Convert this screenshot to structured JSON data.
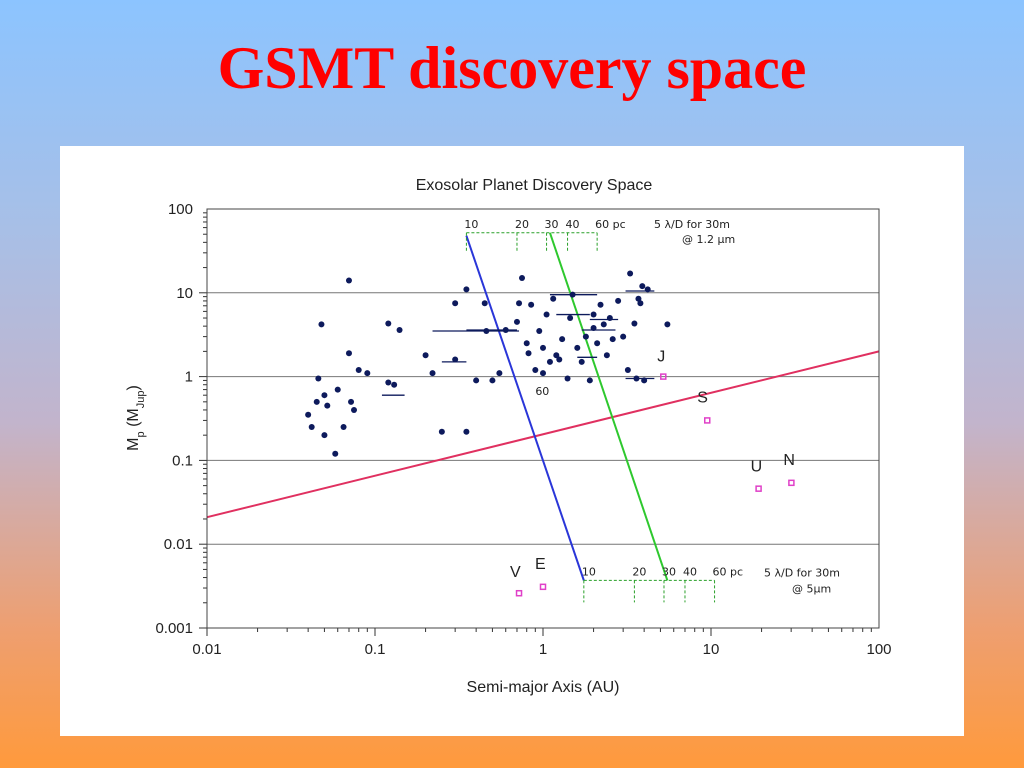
{
  "slide": {
    "title": "GSMT discovery space"
  },
  "colors": {
    "title": "#ff0000",
    "points": "#0d1a5c",
    "solar": "#e040c8",
    "blue_line": "#2a36d8",
    "green_line": "#2ec82e",
    "red_line": "#e03060",
    "dashed": "#2aa02a"
  },
  "chart_data": {
    "type": "scatter",
    "title": "Exosolar Planet Discovery Space",
    "xlabel": "Semi-major Axis (AU)",
    "ylabel": "Mp (MJup)",
    "ylabel_main": "M",
    "ylabel_sub": "p",
    "ylabel_unit_open": " (M",
    "ylabel_unit_sub": "Jup",
    "ylabel_unit_close": ")",
    "x_scale": "log",
    "y_scale": "log",
    "xlim": [
      0.01,
      100
    ],
    "ylim": [
      0.001,
      100
    ],
    "x_ticks": [
      {
        "value": 0.01,
        "label": "0.01"
      },
      {
        "value": 0.1,
        "label": "0.1"
      },
      {
        "value": 1,
        "label": "1"
      },
      {
        "value": 10,
        "label": "10"
      },
      {
        "value": 100,
        "label": "100"
      }
    ],
    "y_ticks": [
      {
        "value": 100,
        "label": "100"
      },
      {
        "value": 10,
        "label": "10"
      },
      {
        "value": 1,
        "label": "1"
      },
      {
        "value": 0.1,
        "label": "0.1"
      },
      {
        "value": 0.01,
        "label": "0.01"
      },
      {
        "value": 0.001,
        "label": "0.001"
      }
    ],
    "grid": "horizontal",
    "exoplanets": [
      [
        0.04,
        0.35
      ],
      [
        0.042,
        0.25
      ],
      [
        0.045,
        0.5
      ],
      [
        0.046,
        0.95
      ],
      [
        0.048,
        4.2
      ],
      [
        0.05,
        0.6
      ],
      [
        0.05,
        0.2
      ],
      [
        0.052,
        0.45
      ],
      [
        0.058,
        0.12
      ],
      [
        0.06,
        0.7
      ],
      [
        0.065,
        0.25
      ],
      [
        0.07,
        1.9
      ],
      [
        0.07,
        14
      ],
      [
        0.072,
        0.5
      ],
      [
        0.075,
        0.4
      ],
      [
        0.08,
        1.2
      ],
      [
        0.09,
        1.1
      ],
      [
        0.12,
        4.3
      ],
      [
        0.12,
        0.85
      ],
      [
        0.13,
        0.8
      ],
      [
        0.14,
        3.6
      ],
      [
        0.2,
        1.8
      ],
      [
        0.22,
        1.1
      ],
      [
        0.25,
        0.22
      ],
      [
        0.3,
        1.6
      ],
      [
        0.3,
        7.5
      ],
      [
        0.35,
        0.22
      ],
      [
        0.35,
        11
      ],
      [
        0.4,
        0.9
      ],
      [
        0.45,
        7.5
      ],
      [
        0.46,
        3.5
      ],
      [
        0.5,
        0.9
      ],
      [
        0.55,
        1.1
      ],
      [
        0.6,
        3.6
      ],
      [
        0.7,
        4.5
      ],
      [
        0.72,
        7.5
      ],
      [
        0.75,
        15
      ],
      [
        0.8,
        2.5
      ],
      [
        0.82,
        1.9
      ],
      [
        0.85,
        7.2
      ],
      [
        0.9,
        1.2
      ],
      [
        0.95,
        3.5
      ],
      [
        1.0,
        2.2
      ],
      [
        1.0,
        1.1
      ],
      [
        1.05,
        5.5
      ],
      [
        1.1,
        1.5
      ],
      [
        1.15,
        8.5
      ],
      [
        1.2,
        1.8
      ],
      [
        1.25,
        1.6
      ],
      [
        1.3,
        2.8
      ],
      [
        1.4,
        0.95
      ],
      [
        1.45,
        5.0
      ],
      [
        1.5,
        9.5
      ],
      [
        1.6,
        2.2
      ],
      [
        1.7,
        1.5
      ],
      [
        1.8,
        3.0
      ],
      [
        1.9,
        0.9
      ],
      [
        2.0,
        5.5
      ],
      [
        2.0,
        3.8
      ],
      [
        2.1,
        2.5
      ],
      [
        2.2,
        7.2
      ],
      [
        2.3,
        4.2
      ],
      [
        2.4,
        1.8
      ],
      [
        2.5,
        5.0
      ],
      [
        2.6,
        2.8
      ],
      [
        2.8,
        8.0
      ],
      [
        3.0,
        3.0
      ],
      [
        3.2,
        1.2
      ],
      [
        3.3,
        17
      ],
      [
        3.5,
        4.3
      ],
      [
        3.6,
        0.95
      ],
      [
        3.7,
        8.5
      ],
      [
        3.8,
        7.5
      ],
      [
        3.9,
        12
      ],
      [
        4.0,
        0.9
      ],
      [
        4.2,
        11
      ],
      [
        5.5,
        4.2
      ]
    ],
    "error_bars": [
      [
        0.12,
        0.6,
        0.11,
        0.15
      ],
      [
        0.3,
        3.5,
        0.22,
        0.72
      ],
      [
        0.55,
        3.6,
        0.35,
        0.7
      ],
      [
        0.3,
        1.5,
        0.25,
        0.35
      ],
      [
        1.5,
        5.5,
        1.2,
        1.9
      ],
      [
        1.5,
        9.5,
        1.1,
        2.1
      ],
      [
        2.0,
        3.6,
        1.7,
        2.7
      ],
      [
        2.3,
        4.8,
        1.9,
        2.8
      ],
      [
        3.8,
        10.5,
        3.1,
        4.6
      ],
      [
        3.8,
        0.95,
        3.1,
        4.6
      ],
      [
        1.8,
        1.7,
        1.6,
        2.1
      ]
    ],
    "solar_system": [
      {
        "name": "V",
        "a": 0.72,
        "m": 0.0026
      },
      {
        "name": "E",
        "a": 1.0,
        "m": 0.0031
      },
      {
        "name": "J",
        "a": 5.2,
        "m": 1.0
      },
      {
        "name": "S",
        "a": 9.5,
        "m": 0.3
      },
      {
        "name": "U",
        "a": 19.2,
        "m": 0.046
      },
      {
        "name": "N",
        "a": 30.1,
        "m": 0.054
      }
    ],
    "lines": {
      "red": {
        "x": [
          0.01,
          100
        ],
        "y": [
          0.021,
          2.0
        ]
      },
      "blue": {
        "x": [
          0.35,
          1.75
        ],
        "y": [
          48,
          0.0037
        ]
      },
      "green": {
        "x": [
          1.1,
          5.5
        ],
        "y": [
          52,
          0.0037
        ]
      }
    },
    "annotations": {
      "top_pc_labels": [
        "10",
        "20",
        "30",
        "40",
        "60 pc"
      ],
      "top_pc_positions": [
        0.35,
        0.7,
        1.05,
        1.4,
        2.1
      ],
      "top_band_y": 52,
      "top_note_line1": "5 λ/D for 30m",
      "top_note_line2": "@ 1.2  µm",
      "bottom_pc_labels": [
        "10",
        "20",
        "30",
        "40",
        "60 pc"
      ],
      "bottom_pc_positions": [
        1.75,
        3.5,
        5.25,
        7.0,
        10.5
      ],
      "bottom_band_y": 0.0037,
      "bottom_note_line1": "5 λ/D for 30m",
      "bottom_note_line2": "@ 5µm",
      "blue_mid_label": "60"
    }
  }
}
